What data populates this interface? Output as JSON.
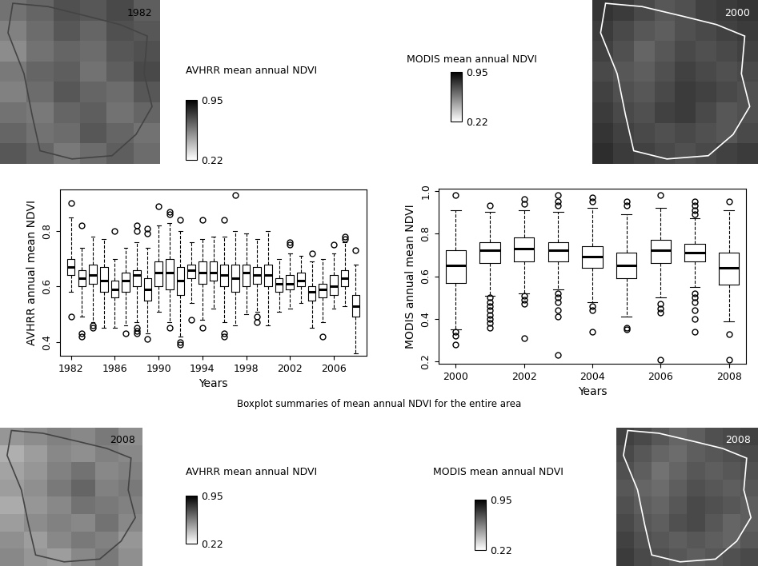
{
  "caption": "Boxplot summaries of mean annual NDVI for the entire area",
  "chart_data": [
    {
      "type": "heatmap",
      "title": "1982",
      "tick_labels": false,
      "cells": [
        [
          0.62,
          0.66,
          0.72,
          0.7,
          0.74,
          0.68
        ],
        [
          0.58,
          0.64,
          0.7,
          0.66,
          0.72,
          0.7
        ],
        [
          0.55,
          0.62,
          0.66,
          0.64,
          0.7,
          0.72
        ],
        [
          0.6,
          0.66,
          0.68,
          0.62,
          0.68,
          0.74
        ],
        [
          0.58,
          0.64,
          0.7,
          0.66,
          0.64,
          0.7
        ],
        [
          0.62,
          0.6,
          0.66,
          0.68,
          0.62,
          0.66
        ],
        [
          0.66,
          0.62,
          0.64,
          0.7,
          0.66,
          0.62
        ],
        [
          0.7,
          0.66,
          0.6,
          0.64,
          0.68,
          0.64
        ]
      ],
      "colorbar": {
        "label": "AVHRR mean annual NDVI",
        "range": [
          0.22,
          0.95
        ],
        "ticks": [
          0.22,
          0.95
        ]
      }
    },
    {
      "type": "heatmap",
      "title": "2000",
      "tick_labels": false,
      "cells": [
        [
          0.8,
          0.78,
          0.74,
          0.7,
          0.72,
          0.76,
          0.78,
          0.8
        ],
        [
          0.78,
          0.74,
          0.7,
          0.68,
          0.72,
          0.74,
          0.76,
          0.78
        ],
        [
          0.76,
          0.72,
          0.66,
          0.7,
          0.74,
          0.72,
          0.74,
          0.76
        ],
        [
          0.74,
          0.7,
          0.68,
          0.72,
          0.76,
          0.74,
          0.72,
          0.74
        ],
        [
          0.76,
          0.72,
          0.7,
          0.74,
          0.78,
          0.76,
          0.74,
          0.72
        ],
        [
          0.78,
          0.74,
          0.72,
          0.76,
          0.78,
          0.74,
          0.7,
          0.72
        ],
        [
          0.8,
          0.76,
          0.74,
          0.72,
          0.74,
          0.72,
          0.7,
          0.74
        ],
        [
          0.82,
          0.78,
          0.76,
          0.74,
          0.72,
          0.74,
          0.76,
          0.78
        ]
      ],
      "colorbar": {
        "label": "MODIS mean annual NDVI",
        "range": [
          0.22,
          0.95
        ],
        "ticks": [
          0.22,
          0.95
        ]
      }
    },
    {
      "type": "boxplot",
      "x_label": "Years",
      "y_label": "AVHRR annual mean NDVI",
      "x": [
        1982,
        1983,
        1984,
        1985,
        1986,
        1987,
        1988,
        1989,
        1990,
        1991,
        1992,
        1993,
        1994,
        1995,
        1996,
        1997,
        1998,
        1999,
        2000,
        2001,
        2002,
        2003,
        2004,
        2005,
        2006,
        2007,
        2008
      ],
      "median": [
        0.67,
        0.63,
        0.64,
        0.62,
        0.59,
        0.62,
        0.64,
        0.59,
        0.65,
        0.65,
        0.62,
        0.66,
        0.65,
        0.65,
        0.64,
        0.63,
        0.65,
        0.64,
        0.64,
        0.61,
        0.61,
        0.62,
        0.58,
        0.59,
        0.6,
        0.63,
        0.53
      ],
      "q1": [
        0.64,
        0.6,
        0.61,
        0.58,
        0.56,
        0.58,
        0.6,
        0.55,
        0.6,
        0.59,
        0.57,
        0.63,
        0.61,
        0.62,
        0.6,
        0.58,
        0.6,
        0.61,
        0.6,
        0.58,
        0.59,
        0.6,
        0.55,
        0.56,
        0.57,
        0.6,
        0.49
      ],
      "q3": [
        0.7,
        0.66,
        0.68,
        0.67,
        0.62,
        0.65,
        0.66,
        0.63,
        0.69,
        0.7,
        0.67,
        0.68,
        0.69,
        0.69,
        0.68,
        0.68,
        0.68,
        0.67,
        0.68,
        0.63,
        0.64,
        0.65,
        0.6,
        0.61,
        0.64,
        0.66,
        0.57
      ],
      "whisker_low": [
        0.58,
        0.49,
        0.47,
        0.45,
        0.45,
        0.46,
        0.47,
        0.43,
        0.51,
        0.47,
        0.42,
        0.54,
        0.48,
        0.52,
        0.47,
        0.46,
        0.5,
        0.51,
        0.46,
        0.51,
        0.52,
        0.54,
        0.45,
        0.47,
        0.52,
        0.53,
        0.36
      ],
      "whisker_high": [
        0.85,
        0.74,
        0.78,
        0.77,
        0.7,
        0.74,
        0.76,
        0.74,
        0.82,
        0.83,
        0.8,
        0.76,
        0.77,
        0.78,
        0.78,
        0.8,
        0.79,
        0.77,
        0.8,
        0.7,
        0.72,
        0.71,
        0.69,
        0.7,
        0.72,
        0.76,
        0.68
      ],
      "outliers": [
        [
          0.49,
          0.9
        ],
        [
          0.42,
          0.43,
          0.82
        ],
        [
          0.45,
          0.46
        ],
        [],
        [
          0.8
        ],
        [
          0.43
        ],
        [
          0.43,
          0.44,
          0.45,
          0.8,
          0.82
        ],
        [
          0.41,
          0.79,
          0.81
        ],
        [
          0.89
        ],
        [
          0.45,
          0.86,
          0.87
        ],
        [
          0.39,
          0.4,
          0.84
        ],
        [
          0.48
        ],
        [
          0.45,
          0.84
        ],
        [],
        [
          0.42,
          0.43,
          0.84
        ],
        [
          0.93
        ],
        [],
        [
          0.47,
          0.49
        ],
        [],
        [],
        [
          0.75,
          0.76
        ],
        [],
        [
          0.72
        ],
        [
          0.42
        ],
        [
          0.75
        ],
        [
          0.77,
          0.78
        ],
        [
          0.73
        ]
      ],
      "xlim": [
        1981,
        2009
      ],
      "xticks": [
        1982,
        1986,
        1990,
        1994,
        1998,
        2002,
        2006
      ],
      "ylim": [
        0.35,
        0.95
      ],
      "yticks": [
        0.4,
        0.6,
        0.8
      ]
    },
    {
      "type": "boxplot",
      "x_label": "Years",
      "y_label": "MODIS annual mean NDVI",
      "x": [
        2000,
        2001,
        2002,
        2003,
        2004,
        2005,
        2006,
        2007,
        2008
      ],
      "median": [
        0.65,
        0.72,
        0.73,
        0.72,
        0.69,
        0.65,
        0.72,
        0.71,
        0.64
      ],
      "q1": [
        0.57,
        0.66,
        0.67,
        0.67,
        0.64,
        0.59,
        0.66,
        0.67,
        0.56
      ],
      "q3": [
        0.72,
        0.76,
        0.78,
        0.76,
        0.74,
        0.71,
        0.77,
        0.75,
        0.71
      ],
      "whisker_low": [
        0.35,
        0.51,
        0.52,
        0.54,
        0.48,
        0.41,
        0.5,
        0.55,
        0.39
      ],
      "whisker_high": [
        0.91,
        0.9,
        0.91,
        0.9,
        0.92,
        0.89,
        0.92,
        0.87,
        0.91
      ],
      "outliers": [
        [
          0.28,
          0.32,
          0.34,
          0.98
        ],
        [
          0.36,
          0.38,
          0.4,
          0.42,
          0.44,
          0.46,
          0.48,
          0.5,
          0.93
        ],
        [
          0.31,
          0.47,
          0.49,
          0.51,
          0.94,
          0.96
        ],
        [
          0.23,
          0.41,
          0.44,
          0.48,
          0.5,
          0.52,
          0.93,
          0.95,
          0.98
        ],
        [
          0.34,
          0.44,
          0.46,
          0.95,
          0.97
        ],
        [
          0.35,
          0.36,
          0.93,
          0.95
        ],
        [
          0.21,
          0.43,
          0.45,
          0.47,
          0.98
        ],
        [
          0.34,
          0.4,
          0.44,
          0.48,
          0.5,
          0.52,
          0.89,
          0.91,
          0.93,
          0.95
        ],
        [
          0.21,
          0.33,
          0.95
        ]
      ],
      "xlim": [
        1999.5,
        2008.5
      ],
      "xticks": [
        2000,
        2002,
        2004,
        2006,
        2008
      ],
      "ylim": [
        0.19,
        1.01
      ],
      "yticks": [
        0.2,
        0.4,
        0.6,
        0.8,
        1.0
      ]
    },
    {
      "type": "heatmap",
      "title": "2008",
      "tick_labels": false,
      "cells": [
        [
          0.52,
          0.55,
          0.58,
          0.56,
          0.6,
          0.54
        ],
        [
          0.45,
          0.5,
          0.56,
          0.54,
          0.58,
          0.56
        ],
        [
          0.48,
          0.52,
          0.58,
          0.62,
          0.56,
          0.58
        ],
        [
          0.5,
          0.54,
          0.6,
          0.66,
          0.58,
          0.6
        ],
        [
          0.46,
          0.52,
          0.56,
          0.62,
          0.6,
          0.58
        ],
        [
          0.5,
          0.55,
          0.58,
          0.56,
          0.62,
          0.56
        ],
        [
          0.54,
          0.5,
          0.56,
          0.6,
          0.58,
          0.52
        ],
        [
          0.56,
          0.52,
          0.5,
          0.56,
          0.6,
          0.54
        ]
      ],
      "colorbar": {
        "label": "AVHRR mean annual NDVI",
        "range": [
          0.22,
          0.95
        ],
        "ticks": [
          0.22,
          0.95
        ]
      }
    },
    {
      "type": "heatmap",
      "title": "2008",
      "tick_labels": false,
      "cells": [
        [
          0.76,
          0.74,
          0.7,
          0.66,
          0.68,
          0.72,
          0.74,
          0.76
        ],
        [
          0.74,
          0.7,
          0.66,
          0.64,
          0.68,
          0.7,
          0.72,
          0.74
        ],
        [
          0.72,
          0.68,
          0.62,
          0.66,
          0.7,
          0.68,
          0.7,
          0.72
        ],
        [
          0.7,
          0.66,
          0.64,
          0.68,
          0.72,
          0.7,
          0.68,
          0.7
        ],
        [
          0.72,
          0.68,
          0.66,
          0.7,
          0.74,
          0.72,
          0.7,
          0.68
        ],
        [
          0.74,
          0.7,
          0.68,
          0.72,
          0.74,
          0.7,
          0.66,
          0.68
        ],
        [
          0.76,
          0.72,
          0.7,
          0.68,
          0.7,
          0.68,
          0.66,
          0.7
        ],
        [
          0.78,
          0.74,
          0.72,
          0.7,
          0.68,
          0.7,
          0.72,
          0.74
        ]
      ],
      "colorbar": {
        "label": "MODIS mean annual NDVI",
        "range": [
          0.22,
          0.95
        ],
        "ticks": [
          0.22,
          0.95
        ]
      }
    }
  ]
}
